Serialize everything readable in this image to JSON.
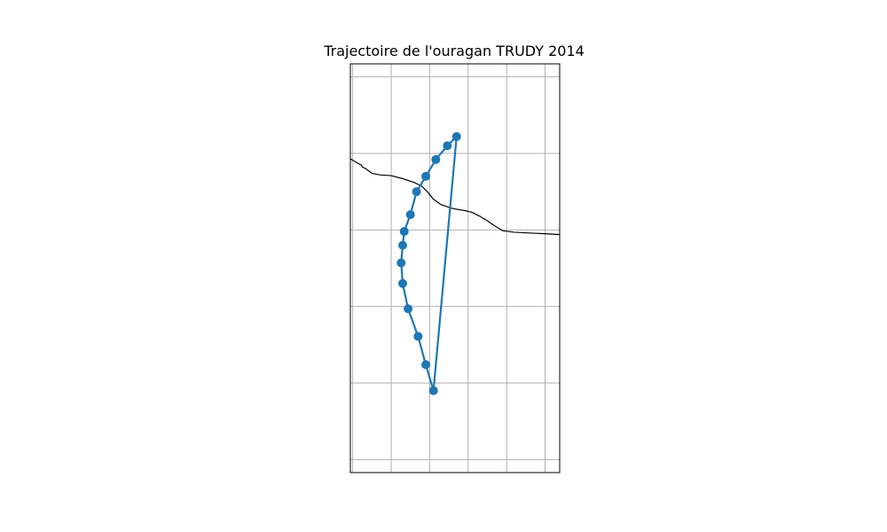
{
  "chart_data": {
    "type": "line",
    "title": "Trajectoire de l'ouragan TRUDY 2014",
    "xlabel": "",
    "ylabel": "",
    "xlim": [
      -101.28,
      -98.56
    ],
    "ylim": [
      14.83,
      20.17
    ],
    "grid": true,
    "grid_x": [
      -101.25,
      -100.75,
      -100.25,
      -99.75,
      -99.25,
      -98.75
    ],
    "grid_y": [
      15.0,
      16.0,
      17.0,
      18.0,
      19.0,
      20.0
    ],
    "series": [
      {
        "color": "#1f77b4",
        "points": [
          {
            "lon": -100.2,
            "lat": 15.9
          },
          {
            "lon": -100.3,
            "lat": 16.24
          },
          {
            "lon": -100.4,
            "lat": 16.61
          },
          {
            "lon": -100.53,
            "lat": 16.97
          },
          {
            "lon": -100.6,
            "lat": 17.3
          },
          {
            "lon": -100.62,
            "lat": 17.57
          },
          {
            "lon": -100.6,
            "lat": 17.8
          },
          {
            "lon": -100.58,
            "lat": 17.98
          },
          {
            "lon": -100.5,
            "lat": 18.2
          },
          {
            "lon": -100.42,
            "lat": 18.5
          },
          {
            "lon": -100.3,
            "lat": 18.7
          },
          {
            "lon": -100.17,
            "lat": 18.92
          },
          {
            "lon": -100.02,
            "lat": 19.1
          },
          {
            "lon": -99.9,
            "lat": 19.22
          },
          {
            "lon": -100.2,
            "lat": 15.9
          }
        ]
      }
    ],
    "coastline": [
      {
        "lon": -101.28,
        "lat": 18.93
      },
      {
        "lon": -101.2,
        "lat": 18.88
      },
      {
        "lon": -101.14,
        "lat": 18.85
      },
      {
        "lon": -101.12,
        "lat": 18.82
      },
      {
        "lon": -101.08,
        "lat": 18.8
      },
      {
        "lon": -101.0,
        "lat": 18.74
      },
      {
        "lon": -100.9,
        "lat": 18.72
      },
      {
        "lon": -100.75,
        "lat": 18.71
      },
      {
        "lon": -100.6,
        "lat": 18.67
      },
      {
        "lon": -100.45,
        "lat": 18.62
      },
      {
        "lon": -100.35,
        "lat": 18.57
      },
      {
        "lon": -100.28,
        "lat": 18.5
      },
      {
        "lon": -100.2,
        "lat": 18.4
      },
      {
        "lon": -100.1,
        "lat": 18.33
      },
      {
        "lon": -99.95,
        "lat": 18.28
      },
      {
        "lon": -99.78,
        "lat": 18.25
      },
      {
        "lon": -99.7,
        "lat": 18.23
      },
      {
        "lon": -99.6,
        "lat": 18.18
      },
      {
        "lon": -99.5,
        "lat": 18.12
      },
      {
        "lon": -99.4,
        "lat": 18.05
      },
      {
        "lon": -99.3,
        "lat": 17.99
      },
      {
        "lon": -99.15,
        "lat": 17.97
      },
      {
        "lon": -98.95,
        "lat": 17.96
      },
      {
        "lon": -98.75,
        "lat": 17.95
      },
      {
        "lon": -98.56,
        "lat": 17.94
      }
    ]
  }
}
